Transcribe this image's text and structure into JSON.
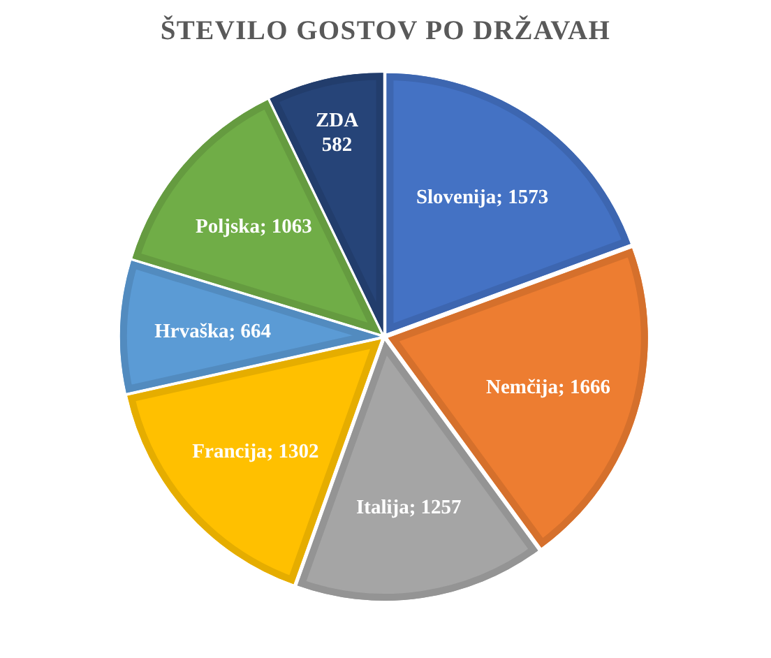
{
  "chart_data": {
    "type": "pie",
    "title": "ŠTEVILO GOSTOV PO DRŽAVAH",
    "categories": [
      "Slovenija",
      "Nemčija",
      "Italija",
      "Francija",
      "Hrvaška",
      "Poljska",
      "ZDA"
    ],
    "values": [
      1573,
      1666,
      1257,
      1302,
      664,
      1063,
      582
    ],
    "colors": [
      "#4472c4",
      "#ed7d31",
      "#a5a5a5",
      "#ffc000",
      "#5b9bd5",
      "#70ad47",
      "#264478"
    ],
    "value_labels": [
      "; 1573",
      "; 1666",
      "; 1257",
      "; 1302",
      "; 664",
      "; 1063",
      "582"
    ]
  }
}
